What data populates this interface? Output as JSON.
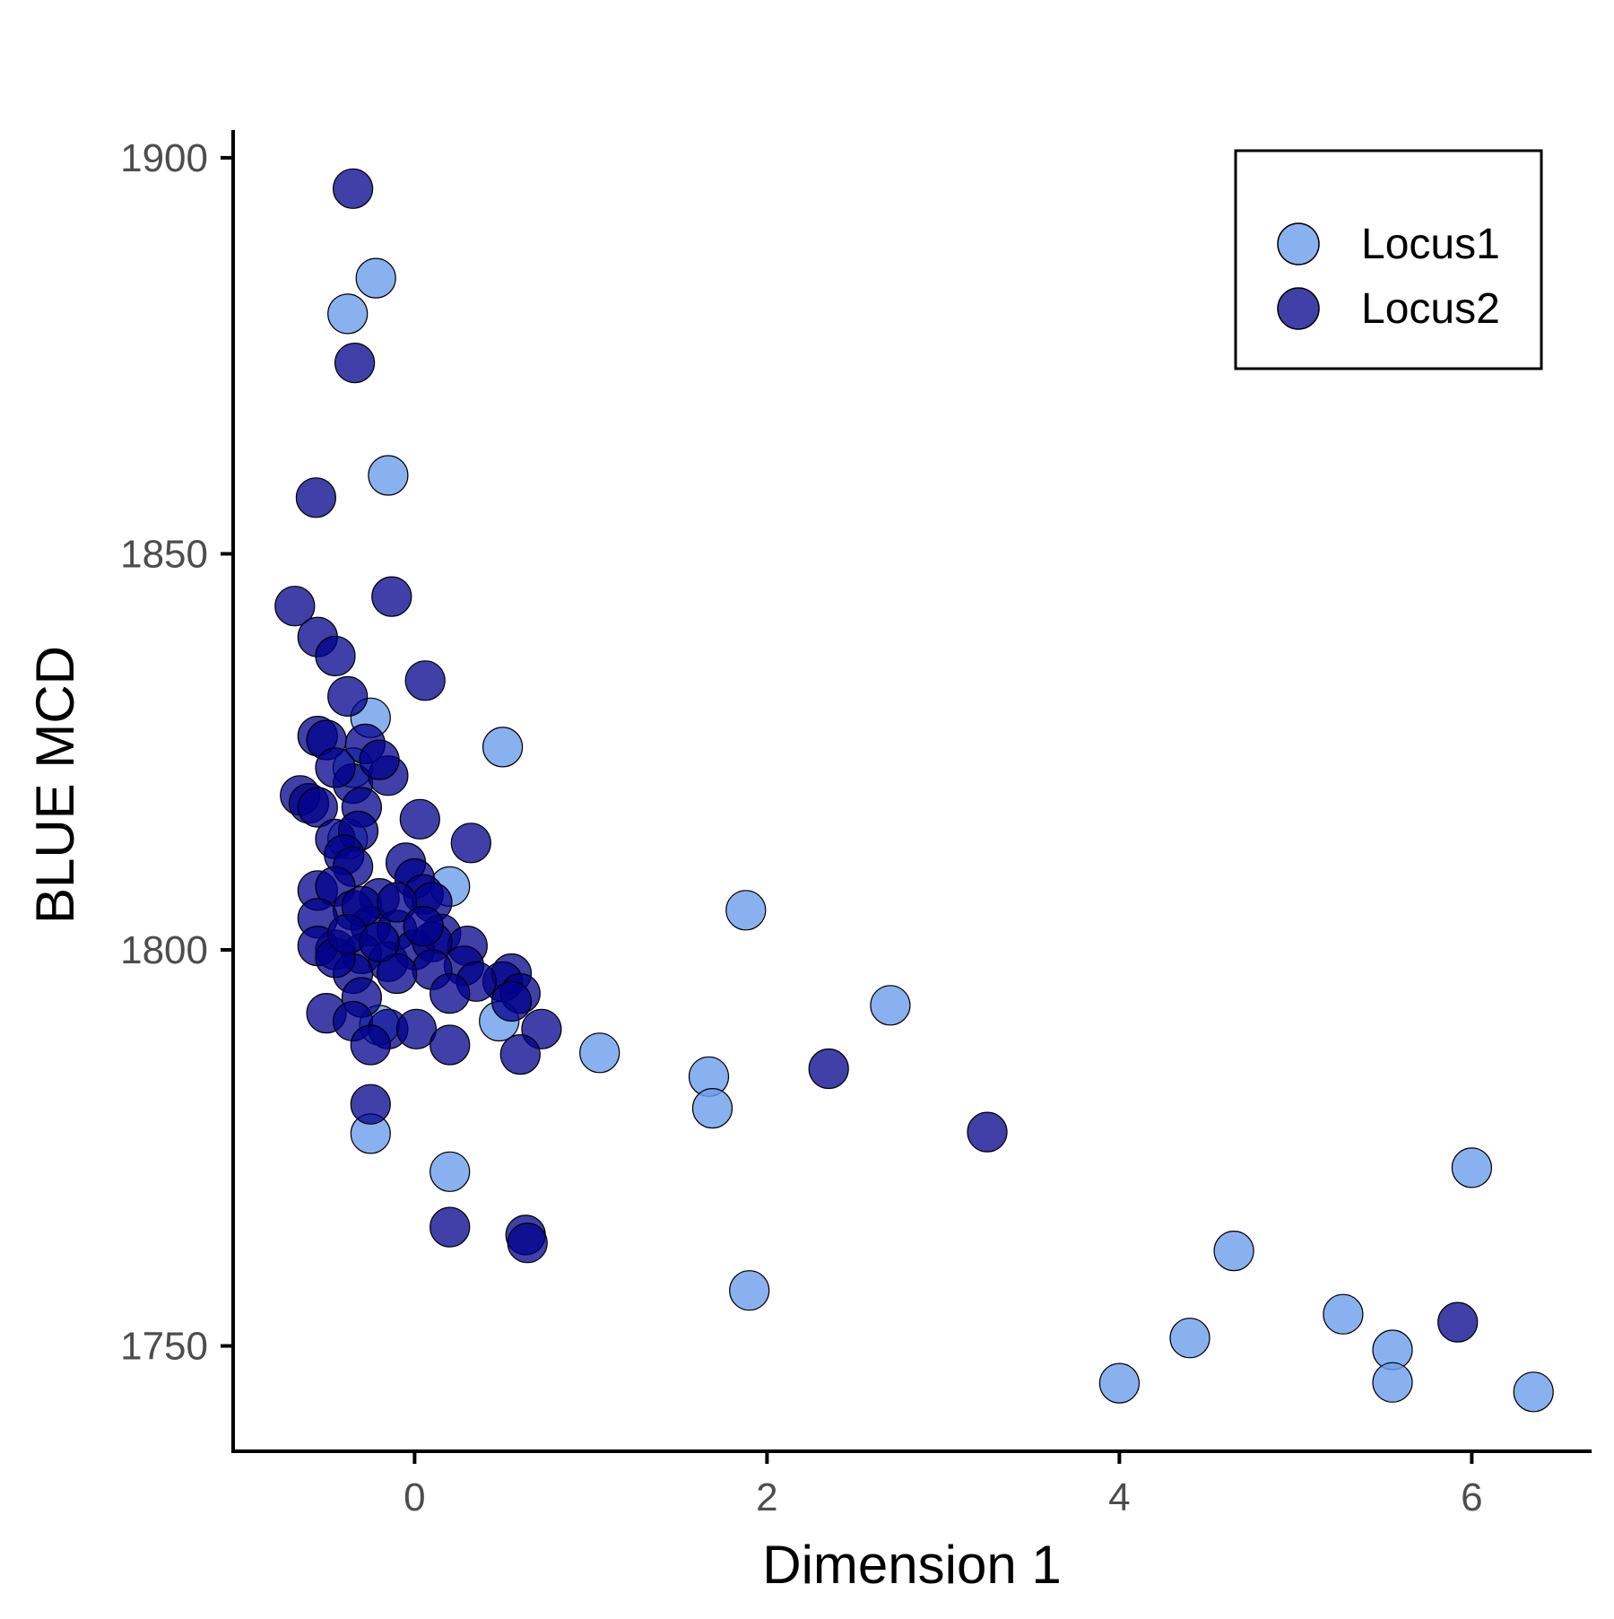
{
  "chart_data": {
    "type": "scatter",
    "title": "",
    "xlabel": "Dimension 1",
    "ylabel": "BLUE MCD",
    "xlim": [
      -1.03,
      6.68
    ],
    "ylim": [
      1736.7,
      1903.5
    ],
    "x_ticks": [
      0,
      2,
      4,
      6
    ],
    "y_ticks": [
      1750,
      1800,
      1850,
      1900
    ],
    "grid": false,
    "legend_position": "top-right",
    "series": [
      {
        "name": "Locus1",
        "color": "#6d9eeb",
        "points": [
          [
            -0.22,
            1884.8
          ],
          [
            -0.38,
            1880.3
          ],
          [
            -0.15,
            1859.9
          ],
          [
            -0.25,
            1829.3
          ],
          [
            0.5,
            1825.6
          ],
          [
            -0.35,
            1823.0
          ],
          [
            0.2,
            1808.0
          ],
          [
            1.88,
            1805.0
          ],
          [
            2.7,
            1793.0
          ],
          [
            0.48,
            1791.0
          ],
          [
            -0.2,
            1790.5
          ],
          [
            1.05,
            1787.0
          ],
          [
            1.67,
            1784.0
          ],
          [
            1.69,
            1780.0
          ],
          [
            -0.25,
            1776.8
          ],
          [
            0.2,
            1772.0
          ],
          [
            1.9,
            1757.0
          ],
          [
            4.65,
            1762.0
          ],
          [
            6.0,
            1772.5
          ],
          [
            4.4,
            1751.0
          ],
          [
            5.27,
            1754.0
          ],
          [
            5.55,
            1749.5
          ],
          [
            5.55,
            1745.4
          ],
          [
            4.0,
            1745.3
          ],
          [
            6.35,
            1744.2
          ],
          [
            -0.38,
            1814.0
          ]
        ]
      },
      {
        "name": "Locus2",
        "color": "#00008b",
        "points": [
          [
            -0.35,
            1896.1
          ],
          [
            -0.34,
            1874.1
          ],
          [
            -0.56,
            1857.1
          ],
          [
            -0.13,
            1844.6
          ],
          [
            -0.68,
            1843.4
          ],
          [
            -0.55,
            1839.5
          ],
          [
            -0.45,
            1837.1
          ],
          [
            0.06,
            1834.0
          ],
          [
            -0.38,
            1832.0
          ],
          [
            -0.55,
            1827.0
          ],
          [
            -0.28,
            1826.0
          ],
          [
            -0.5,
            1826.5
          ],
          [
            -0.35,
            1821.0
          ],
          [
            -0.15,
            1822.0
          ],
          [
            -0.2,
            1824.0
          ],
          [
            -0.45,
            1823.0
          ],
          [
            -0.65,
            1819.5
          ],
          [
            -0.6,
            1818.5
          ],
          [
            -0.55,
            1818.0
          ],
          [
            -0.3,
            1818.0
          ],
          [
            0.03,
            1816.5
          ],
          [
            0.32,
            1813.5
          ],
          [
            -0.45,
            1814.0
          ],
          [
            -0.32,
            1815.0
          ],
          [
            -0.4,
            1812.0
          ],
          [
            -0.05,
            1811.0
          ],
          [
            -0.35,
            1810.5
          ],
          [
            0.0,
            1809.0
          ],
          [
            -0.55,
            1807.5
          ],
          [
            -0.45,
            1808.0
          ],
          [
            -0.2,
            1806.5
          ],
          [
            0.05,
            1807.0
          ],
          [
            0.1,
            1806.0
          ],
          [
            -0.35,
            1805.0
          ],
          [
            -0.55,
            1804.0
          ],
          [
            -0.25,
            1803.0
          ],
          [
            -0.1,
            1802.5
          ],
          [
            0.15,
            1802.0
          ],
          [
            0.3,
            1800.5
          ],
          [
            -0.45,
            1800.0
          ],
          [
            -0.55,
            1800.5
          ],
          [
            -0.3,
            1799.5
          ],
          [
            -0.15,
            1798.5
          ],
          [
            0.0,
            1800.0
          ],
          [
            0.1,
            1801.0
          ],
          [
            0.28,
            1798.0
          ],
          [
            0.55,
            1797.0
          ],
          [
            0.5,
            1796.0
          ],
          [
            0.35,
            1796.0
          ],
          [
            -0.35,
            1797.0
          ],
          [
            -0.45,
            1799.0
          ],
          [
            0.1,
            1797.5
          ],
          [
            -0.1,
            1797.0
          ],
          [
            0.6,
            1794.5
          ],
          [
            0.55,
            1793.5
          ],
          [
            0.2,
            1794.5
          ],
          [
            -0.3,
            1794.0
          ],
          [
            -0.5,
            1792.0
          ],
          [
            -0.35,
            1791.0
          ],
          [
            -0.15,
            1790.0
          ],
          [
            0.01,
            1790.0
          ],
          [
            0.72,
            1790.0
          ],
          [
            -0.25,
            1788.0
          ],
          [
            0.2,
            1788.0
          ],
          [
            0.6,
            1786.8
          ],
          [
            2.35,
            1785.0
          ],
          [
            -0.25,
            1780.5
          ],
          [
            3.25,
            1777.0
          ],
          [
            0.2,
            1765.0
          ],
          [
            0.63,
            1764.0
          ],
          [
            0.64,
            1763.0
          ],
          [
            5.92,
            1753.0
          ],
          [
            -0.3,
            1805.5
          ],
          [
            -0.1,
            1806.0
          ],
          [
            0.05,
            1803.0
          ],
          [
            -0.38,
            1802.0
          ],
          [
            -0.2,
            1801.0
          ]
        ]
      }
    ]
  }
}
